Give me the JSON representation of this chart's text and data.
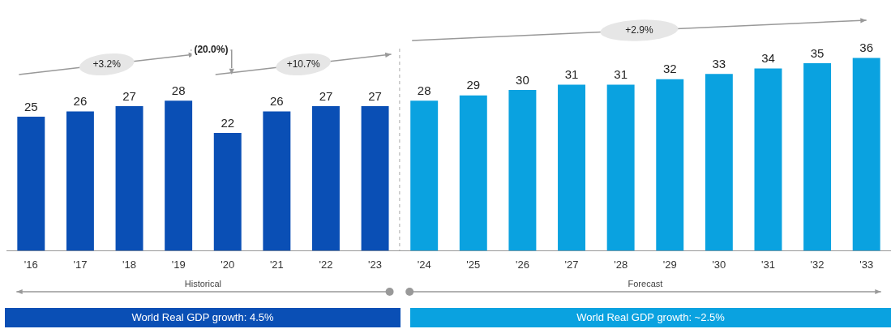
{
  "chart_data": {
    "type": "bar",
    "categories": [
      "'16",
      "'17",
      "'18",
      "'19",
      "'20",
      "'21",
      "'22",
      "'23",
      "'24",
      "'25",
      "'26",
      "'27",
      "'28",
      "'29",
      "'30",
      "'31",
      "'32",
      "'33"
    ],
    "values": [
      25,
      26,
      27,
      28,
      22,
      26,
      27,
      27,
      28,
      29,
      30,
      31,
      31,
      32,
      33,
      34,
      35,
      36
    ],
    "colors": [
      "#0a4fb5",
      "#0a4fb5",
      "#0a4fb5",
      "#0a4fb5",
      "#0a4fb5",
      "#0a4fb5",
      "#0a4fb5",
      "#0a4fb5",
      "#0aa2e0",
      "#0aa2e0",
      "#0aa2e0",
      "#0aa2e0",
      "#0aa2e0",
      "#0aa2e0",
      "#0aa2e0",
      "#0aa2e0",
      "#0aa2e0",
      "#0aa2e0"
    ],
    "data_labels": true,
    "grid": false,
    "legend": false,
    "annotations": [
      "+3.2%",
      "(20.0%)",
      "+10.7%",
      "+2.9%",
      "Historical",
      "Forecast",
      "World Real GDP growth: 4.5%",
      "World Real GDP growth: ~2.5%"
    ]
  }
}
